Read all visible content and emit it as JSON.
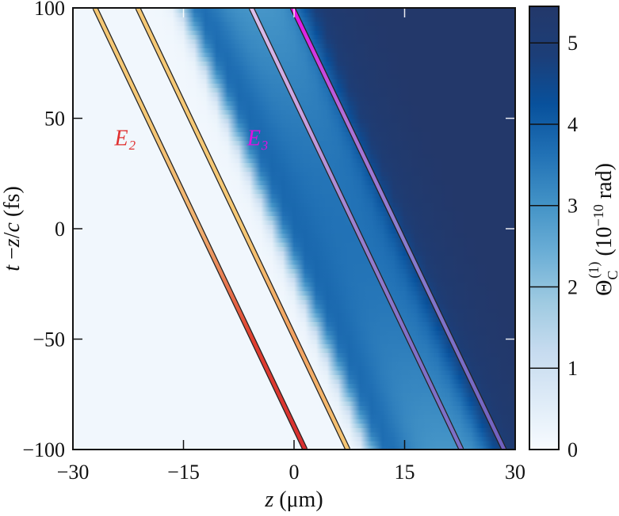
{
  "chart_data": {
    "type": "heatmap",
    "title": "",
    "x_axis": {
      "label_var": "z",
      "label_unit": " (μm)",
      "lim": [
        -30,
        30
      ],
      "ticks": [
        -30,
        -15,
        0,
        15,
        30
      ],
      "tick_labels": [
        "−30",
        "−15",
        "0",
        "15",
        "30"
      ]
    },
    "y_axis": {
      "label_var": "t",
      "label_mid": " −",
      "label_var2": "z",
      "label_slash": "/",
      "label_var3": "c",
      "label_unit": " (fs)",
      "lim": [
        -100,
        100
      ],
      "ticks": [
        -100,
        -50,
        0,
        50,
        100
      ],
      "tick_labels": [
        "−100",
        "−50",
        "0",
        "50",
        "100"
      ]
    },
    "colorbar": {
      "label_symbol": "Θ",
      "label_sub": "C",
      "label_sup": "(1)",
      "label_unit": " (10",
      "label_exp": "−10",
      "label_unit2": " rad)",
      "lim": [
        0,
        5.45
      ],
      "ticks": [
        0,
        1,
        2,
        3,
        4,
        5
      ],
      "tick_labels": [
        "0",
        "1",
        "2",
        "3",
        "4",
        "5"
      ],
      "colormap": [
        "#f7fbff",
        "#deebf7",
        "#c6dbef",
        "#9ecae1",
        "#6baed6",
        "#4292c6",
        "#2171b5",
        "#08519c",
        "#1c3e78",
        "#23386a"
      ]
    },
    "slope_z_per_fs": -0.1267,
    "field_heatmap": {
      "phase_boundaries_z_at_t0": [
        -2.3,
        2.3,
        14.0,
        20.0
      ],
      "levels_by_phase": [
        0.15,
        3.9,
        3.0,
        5.2
      ]
    },
    "series": [
      {
        "name": "E₂",
        "color": "#e03030",
        "lines": [
          {
            "z_at_t_minus100": 1.5,
            "z_at_t_plus100": -27.0,
            "palette": [
              "#f5c875",
              "#f5c875",
              "#f0b070",
              "#e04030",
              "#d83030"
            ]
          },
          {
            "z_at_t_minus100": 7.3,
            "z_at_t_plus100": -21.2,
            "palette": [
              "#f5c875",
              "#f5c875",
              "#f5c875",
              "#f2a060",
              "#f5c875"
            ]
          }
        ]
      },
      {
        "name": "E₃",
        "color": "#e010e0",
        "lines": [
          {
            "z_at_t_minus100": 22.7,
            "z_at_t_plus100": -5.8,
            "palette": [
              "#dcc0ec",
              "#c8a0e0",
              "#9a80d0",
              "#8070c8",
              "#7c70c8"
            ]
          },
          {
            "z_at_t_minus100": 28.5,
            "z_at_t_plus100": -0.2,
            "palette": [
              "#e810e8",
              "#b070d8",
              "#8a7ed0",
              "#7c70c8",
              "#7060c0"
            ]
          }
        ]
      }
    ],
    "series_label_anchors": [
      {
        "series": 0,
        "z": -25.0,
        "t": 50
      },
      {
        "series": 1,
        "z": -7.0,
        "t": 50
      }
    ]
  }
}
